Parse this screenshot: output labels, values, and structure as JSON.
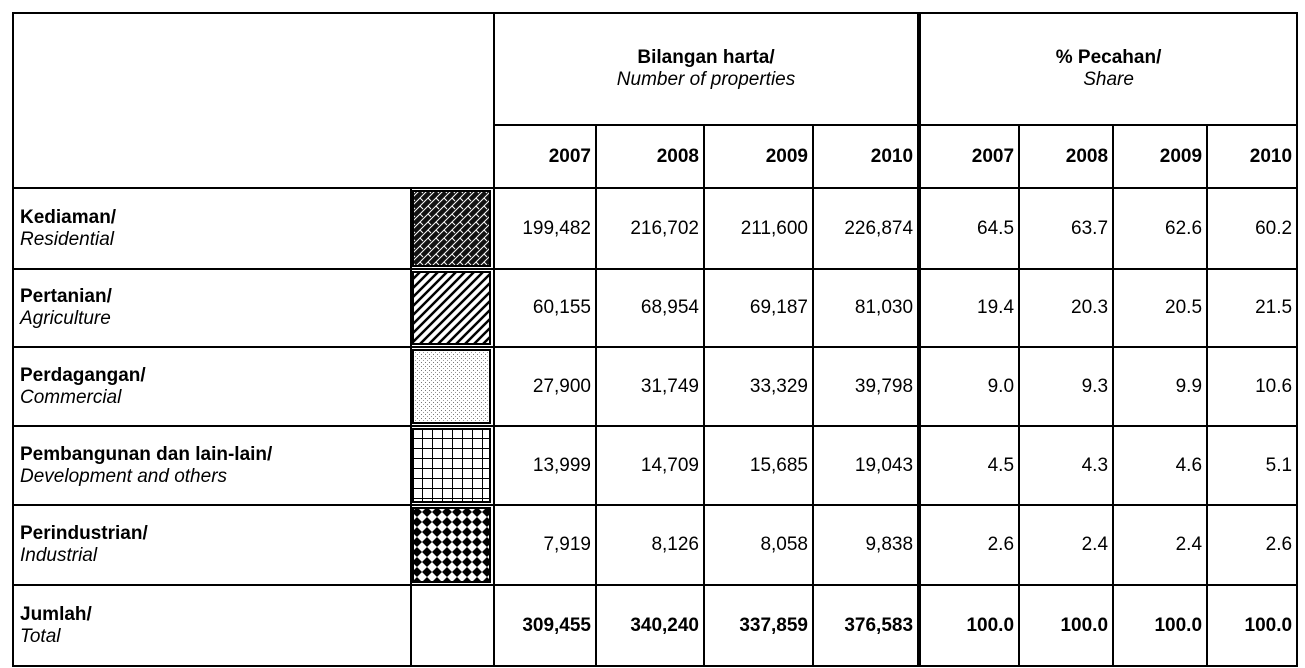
{
  "header": {
    "group1": {
      "bold": "Bilangan harta/",
      "italic": "Number of properties"
    },
    "group2": {
      "bold": "% Pecahan/",
      "italic": "Share"
    },
    "years": [
      "2007",
      "2008",
      "2009",
      "2010",
      "2007",
      "2008",
      "2009",
      "2010"
    ]
  },
  "table": {
    "rows": [
      {
        "label_ms": "Kediaman/",
        "label_en": "Residential",
        "cells": [
          "199,482",
          "216,702",
          "211,600",
          "226,874",
          "64.5",
          "63.7",
          "62.6",
          "60.2"
        ]
      },
      {
        "label_ms": "Pertanian/",
        "label_en": "Agriculture",
        "cells": [
          "60,155",
          "68,954",
          "69,187",
          "81,030",
          "19.4",
          "20.3",
          "20.5",
          "21.5"
        ]
      },
      {
        "label_ms": "Perdagangan/",
        "label_en": "Commercial",
        "cells": [
          "27,900",
          "31,749",
          "33,329",
          "39,798",
          "9.0",
          "9.3",
          "9.9",
          "10.6"
        ]
      },
      {
        "label_ms": "Pembangunan dan lain-lain/",
        "label_en": "Development and others",
        "cells": [
          "13,999",
          "14,709",
          "15,685",
          "19,043",
          "4.5",
          "4.3",
          "4.6",
          "5.1"
        ]
      },
      {
        "label_ms": "Perindustrian/",
        "label_en": "Industrial",
        "cells": [
          "7,919",
          "8,126",
          "8,058",
          "9,838",
          "2.6",
          "2.4",
          "2.4",
          "2.6"
        ]
      }
    ],
    "total": {
      "label_ms": "Jumlah/",
      "label_en": "Total",
      "cells": [
        "309,455",
        "340,240",
        "337,859",
        "376,583",
        "100.0",
        "100.0",
        "100.0",
        "100.0"
      ]
    }
  }
}
